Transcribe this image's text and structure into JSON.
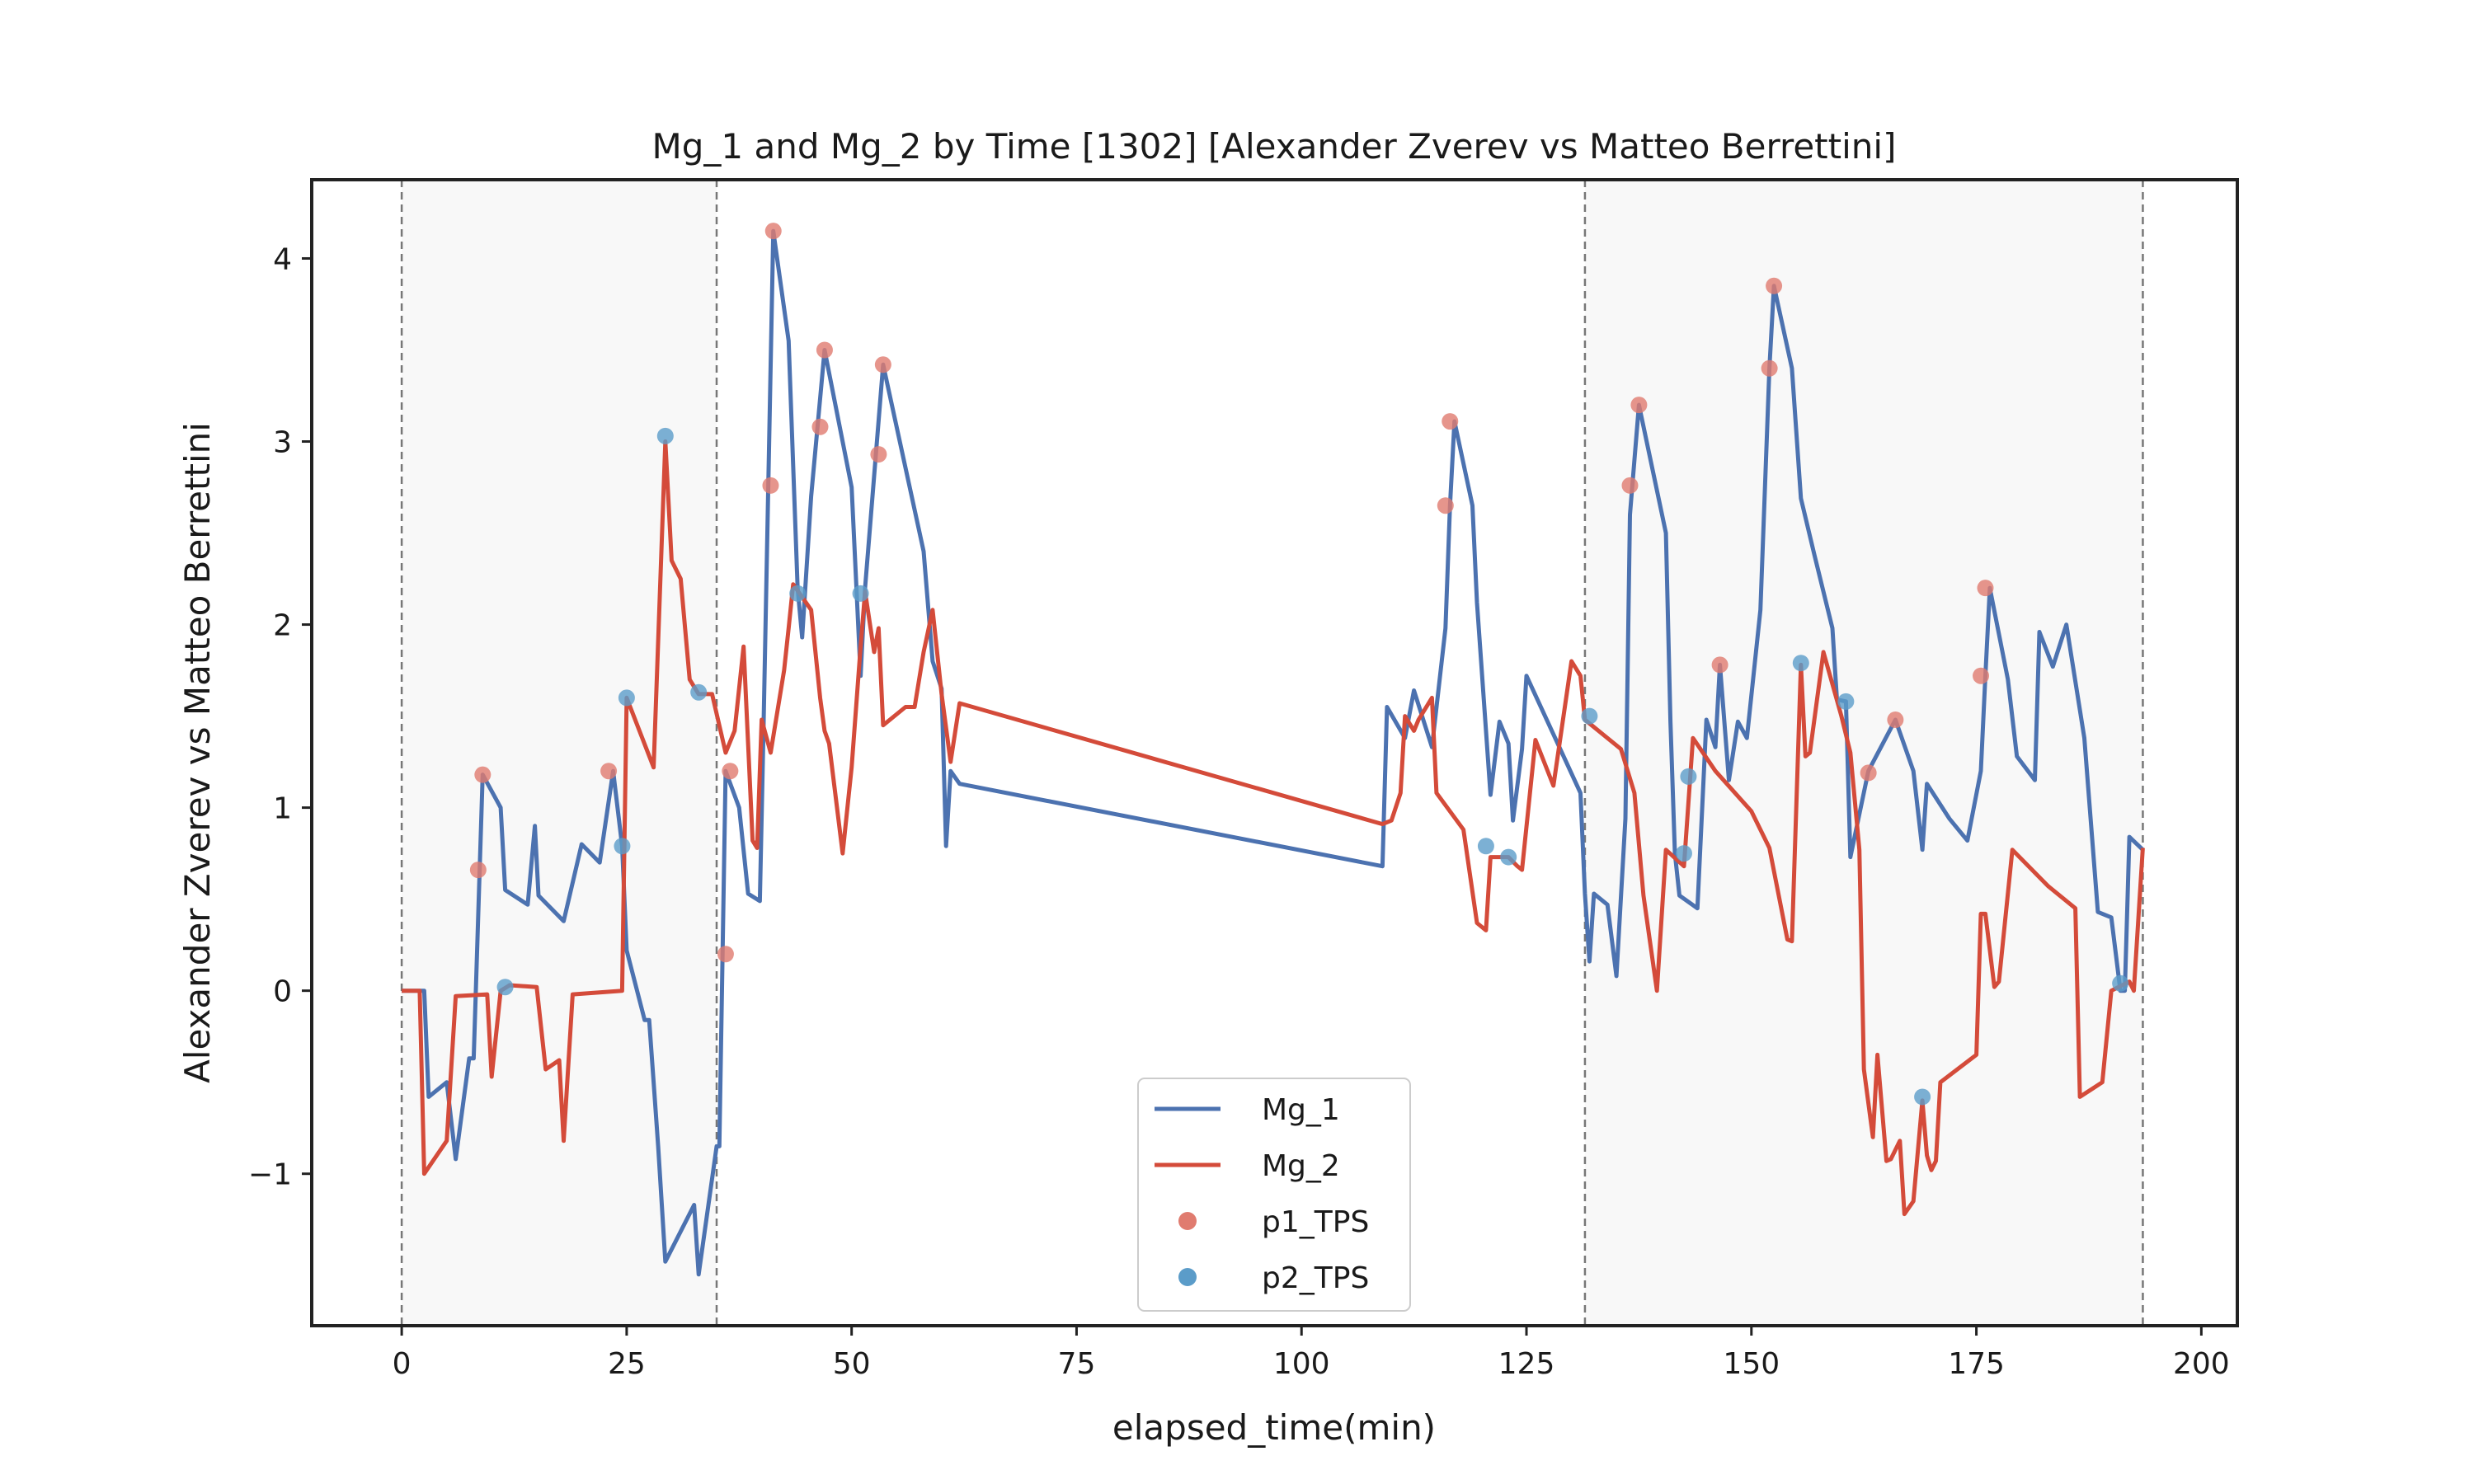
{
  "chart_data": {
    "type": "line",
    "title": "Mg_1 and Mg_2 by Time [1302] [Alexander Zverev vs Matteo Berrettini]",
    "xlabel": "elapsed_time(min)",
    "ylabel": "Alexander Zverev vs Matteo Berrettini",
    "xlim": [
      -10,
      204
    ],
    "ylim": [
      -1.83,
      4.43
    ],
    "xticks": [
      0,
      25,
      50,
      75,
      100,
      125,
      150,
      175,
      200
    ],
    "yticks": [
      -1,
      0,
      1,
      2,
      3,
      4
    ],
    "ytick_labels": [
      "−1",
      "0",
      "1",
      "2",
      "3",
      "4"
    ],
    "grid": false,
    "legend_position": "bottom-center",
    "set_boundaries": [
      0,
      35,
      131.5,
      193.5
    ],
    "shaded_sets": [
      [
        0,
        35
      ],
      [
        131.5,
        193.5
      ]
    ],
    "series": [
      {
        "name": "Mg_1",
        "kind": "line",
        "color": "#4c72b0",
        "points": [
          [
            0,
            0
          ],
          [
            2.5,
            0
          ],
          [
            3,
            -0.58
          ],
          [
            5,
            -0.5
          ],
          [
            6,
            -0.92
          ],
          [
            7.5,
            -0.37
          ],
          [
            8,
            -0.37
          ],
          [
            9,
            1.18
          ],
          [
            11,
            1.0
          ],
          [
            11.5,
            0.55
          ],
          [
            14,
            0.47
          ],
          [
            14.8,
            0.9
          ],
          [
            15.2,
            0.52
          ],
          [
            18,
            0.38
          ],
          [
            20,
            0.8
          ],
          [
            22,
            0.7
          ],
          [
            23.5,
            1.2
          ],
          [
            24.5,
            0.79
          ],
          [
            25,
            0.22
          ],
          [
            27,
            -0.16
          ],
          [
            27.5,
            -0.16
          ],
          [
            28,
            -0.5
          ],
          [
            28.5,
            -0.85
          ],
          [
            29.3,
            -1.48
          ],
          [
            32.5,
            -1.17
          ],
          [
            33,
            -1.55
          ],
          [
            35,
            -0.85
          ],
          [
            35.3,
            -0.85
          ],
          [
            36,
            1.2
          ],
          [
            37.5,
            1.0
          ],
          [
            38.5,
            0.53
          ],
          [
            39.8,
            0.49
          ],
          [
            40.2,
            1.4
          ],
          [
            41.3,
            4.15
          ],
          [
            43,
            3.55
          ],
          [
            44,
            2.2
          ],
          [
            44.5,
            1.93
          ],
          [
            45.5,
            2.7
          ],
          [
            47,
            3.5
          ],
          [
            50,
            2.75
          ],
          [
            51,
            1.72
          ],
          [
            51.5,
            2.2
          ],
          [
            53.5,
            3.42
          ],
          [
            58,
            2.4
          ],
          [
            59,
            1.8
          ],
          [
            60,
            1.65
          ],
          [
            60.5,
            0.79
          ],
          [
            61,
            1.2
          ],
          [
            62,
            1.13
          ],
          [
            109,
            0.68
          ],
          [
            109.5,
            1.55
          ],
          [
            111.5,
            1.38
          ],
          [
            112.5,
            1.64
          ],
          [
            114.5,
            1.33
          ],
          [
            116,
            1.98
          ],
          [
            116.5,
            2.65
          ],
          [
            117,
            3.11
          ],
          [
            119,
            2.65
          ],
          [
            119.5,
            2.12
          ],
          [
            121,
            1.07
          ],
          [
            122,
            1.47
          ],
          [
            123,
            1.35
          ],
          [
            123.5,
            0.93
          ],
          [
            124.5,
            1.32
          ],
          [
            125,
            1.72
          ],
          [
            131,
            1.08
          ],
          [
            131.5,
            0.53
          ],
          [
            132,
            0.16
          ],
          [
            132.5,
            0.53
          ],
          [
            134,
            0.47
          ],
          [
            135,
            0.08
          ],
          [
            136,
            0.94
          ],
          [
            136.5,
            2.6
          ],
          [
            137.5,
            3.2
          ],
          [
            140.5,
            2.5
          ],
          [
            141,
            1.47
          ],
          [
            141.5,
            0.75
          ],
          [
            142,
            0.52
          ],
          [
            144,
            0.45
          ],
          [
            145,
            1.48
          ],
          [
            146,
            1.33
          ],
          [
            146.5,
            1.78
          ],
          [
            147.5,
            1.15
          ],
          [
            148.5,
            1.47
          ],
          [
            149.5,
            1.38
          ],
          [
            151,
            2.08
          ],
          [
            152,
            3.4
          ],
          [
            152.5,
            3.85
          ],
          [
            154.5,
            3.4
          ],
          [
            155.5,
            2.69
          ],
          [
            157,
            2.38
          ],
          [
            159,
            1.98
          ],
          [
            159.5,
            1.59
          ],
          [
            160.5,
            1.58
          ],
          [
            161,
            0.73
          ],
          [
            163,
            1.2
          ],
          [
            166,
            1.48
          ],
          [
            168,
            1.2
          ],
          [
            169,
            0.77
          ],
          [
            169.5,
            1.13
          ],
          [
            172,
            0.94
          ],
          [
            174,
            0.82
          ],
          [
            175.5,
            1.2
          ],
          [
            176,
            1.72
          ],
          [
            176.5,
            2.2
          ],
          [
            178.5,
            1.7
          ],
          [
            179.5,
            1.28
          ],
          [
            181.5,
            1.15
          ],
          [
            182,
            1.96
          ],
          [
            183.5,
            1.77
          ],
          [
            185,
            2.0
          ],
          [
            187,
            1.38
          ],
          [
            188.5,
            0.43
          ],
          [
            190,
            0.4
          ],
          [
            191,
            0.0
          ],
          [
            191.5,
            0.0
          ],
          [
            192,
            0.84
          ],
          [
            193.5,
            0.77
          ]
        ]
      },
      {
        "name": "Mg_2",
        "kind": "line",
        "color": "#d44b3a",
        "points": [
          [
            0,
            0
          ],
          [
            2,
            0
          ],
          [
            2.5,
            -1.0
          ],
          [
            5,
            -0.82
          ],
          [
            6,
            -0.03
          ],
          [
            9.5,
            -0.02
          ],
          [
            10,
            -0.47
          ],
          [
            11,
            0.0
          ],
          [
            12,
            0.03
          ],
          [
            15,
            0.02
          ],
          [
            16,
            -0.43
          ],
          [
            17.5,
            -0.38
          ],
          [
            18,
            -0.82
          ],
          [
            19,
            -0.02
          ],
          [
            24.5,
            0.0
          ],
          [
            25,
            1.6
          ],
          [
            28,
            1.22
          ],
          [
            29.3,
            3.0
          ],
          [
            30,
            2.35
          ],
          [
            31,
            2.25
          ],
          [
            32,
            1.7
          ],
          [
            33,
            1.62
          ],
          [
            34.5,
            1.62
          ],
          [
            36,
            1.3
          ],
          [
            37,
            1.42
          ],
          [
            38,
            1.88
          ],
          [
            39,
            0.82
          ],
          [
            39.5,
            0.78
          ],
          [
            40,
            1.48
          ],
          [
            41,
            1.3
          ],
          [
            42.5,
            1.75
          ],
          [
            43,
            1.98
          ],
          [
            43.5,
            2.22
          ],
          [
            45.5,
            2.08
          ],
          [
            46.5,
            1.6
          ],
          [
            47,
            1.42
          ],
          [
            47.5,
            1.35
          ],
          [
            49,
            0.75
          ],
          [
            50,
            1.22
          ],
          [
            51,
            1.88
          ],
          [
            51.5,
            2.18
          ],
          [
            52.5,
            1.85
          ],
          [
            53,
            1.98
          ],
          [
            53.5,
            1.45
          ],
          [
            56,
            1.55
          ],
          [
            57,
            1.55
          ],
          [
            58,
            1.85
          ],
          [
            59,
            2.08
          ],
          [
            60,
            1.62
          ],
          [
            61,
            1.25
          ],
          [
            62,
            1.57
          ],
          [
            109,
            0.91
          ],
          [
            110,
            0.93
          ],
          [
            111,
            1.08
          ],
          [
            111.5,
            1.5
          ],
          [
            112.5,
            1.42
          ],
          [
            113,
            1.48
          ],
          [
            114.5,
            1.6
          ],
          [
            115,
            1.08
          ],
          [
            118,
            0.88
          ],
          [
            119.5,
            0.37
          ],
          [
            120.5,
            0.33
          ],
          [
            121,
            0.73
          ],
          [
            123,
            0.73
          ],
          [
            124,
            0.68
          ],
          [
            124.5,
            0.66
          ],
          [
            126,
            1.37
          ],
          [
            128,
            1.12
          ],
          [
            130,
            1.8
          ],
          [
            131,
            1.72
          ],
          [
            131.5,
            1.48
          ],
          [
            135.5,
            1.32
          ],
          [
            137,
            1.08
          ],
          [
            138,
            0.52
          ],
          [
            139.5,
            0.0
          ],
          [
            140.5,
            0.77
          ],
          [
            142.5,
            0.68
          ],
          [
            143.5,
            1.38
          ],
          [
            146,
            1.2
          ],
          [
            150,
            0.98
          ],
          [
            152,
            0.78
          ],
          [
            154,
            0.28
          ],
          [
            154.5,
            0.27
          ],
          [
            155.5,
            1.78
          ],
          [
            156,
            1.28
          ],
          [
            156.5,
            1.3
          ],
          [
            158,
            1.85
          ],
          [
            160,
            1.5
          ],
          [
            161,
            1.3
          ],
          [
            162,
            0.77
          ],
          [
            162.5,
            -0.43
          ],
          [
            163.5,
            -0.8
          ],
          [
            164,
            -0.35
          ],
          [
            165,
            -0.93
          ],
          [
            165.5,
            -0.92
          ],
          [
            166.5,
            -0.82
          ],
          [
            167,
            -1.22
          ],
          [
            168,
            -1.15
          ],
          [
            169,
            -0.6
          ],
          [
            169.5,
            -0.9
          ],
          [
            170,
            -0.98
          ],
          [
            170.5,
            -0.93
          ],
          [
            171,
            -0.5
          ],
          [
            175,
            -0.35
          ],
          [
            175.5,
            0.42
          ],
          [
            176,
            0.42
          ],
          [
            177,
            0.02
          ],
          [
            177.5,
            0.05
          ],
          [
            179,
            0.77
          ],
          [
            183,
            0.57
          ],
          [
            186,
            0.45
          ],
          [
            186.5,
            -0.58
          ],
          [
            189,
            -0.5
          ],
          [
            190,
            0.0
          ],
          [
            192,
            0.05
          ],
          [
            192.5,
            0.0
          ],
          [
            193.5,
            0.78
          ]
        ]
      },
      {
        "name": "p1_TPS",
        "kind": "scatter",
        "color": "#e07b6f",
        "points": [
          [
            8.5,
            0.66
          ],
          [
            9,
            1.18
          ],
          [
            23,
            1.2
          ],
          [
            36,
            0.2
          ],
          [
            36.5,
            1.2
          ],
          [
            41,
            2.76
          ],
          [
            41.3,
            4.15
          ],
          [
            46.5,
            3.08
          ],
          [
            47,
            3.5
          ],
          [
            53,
            2.93
          ],
          [
            53.5,
            3.42
          ],
          [
            116,
            2.65
          ],
          [
            116.5,
            3.11
          ],
          [
            136.5,
            2.76
          ],
          [
            137.5,
            3.2
          ],
          [
            146.5,
            1.78
          ],
          [
            152,
            3.4
          ],
          [
            152.5,
            3.85
          ],
          [
            163,
            1.19
          ],
          [
            166,
            1.48
          ],
          [
            175.5,
            1.72
          ],
          [
            176,
            2.2
          ]
        ]
      },
      {
        "name": "p2_TPS",
        "kind": "scatter",
        "color": "#5b9cc9",
        "points": [
          [
            11.5,
            0.02
          ],
          [
            24.5,
            0.79
          ],
          [
            25,
            1.6
          ],
          [
            29.3,
            3.03
          ],
          [
            33,
            1.63
          ],
          [
            44,
            2.17
          ],
          [
            51,
            2.17
          ],
          [
            120.5,
            0.79
          ],
          [
            123,
            0.73
          ],
          [
            132,
            1.5
          ],
          [
            142.5,
            0.75
          ],
          [
            143,
            1.17
          ],
          [
            155.5,
            1.79
          ],
          [
            160.5,
            1.58
          ],
          [
            169,
            -0.58
          ],
          [
            191,
            0.04
          ]
        ]
      }
    ]
  }
}
